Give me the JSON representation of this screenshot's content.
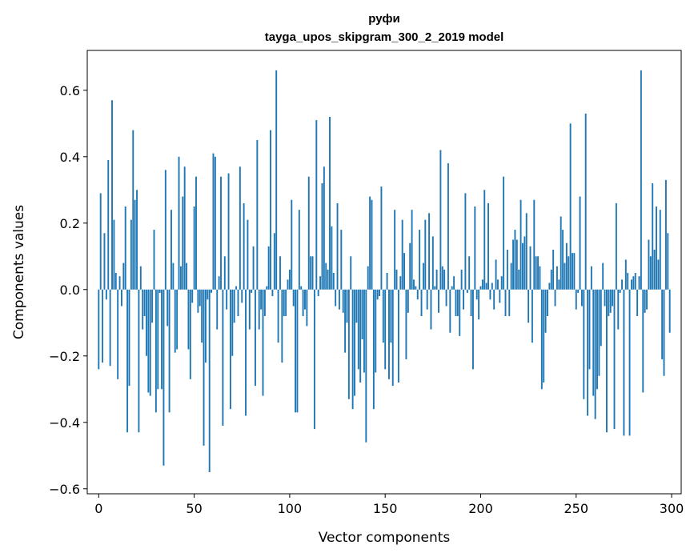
{
  "chart_data": {
    "type": "bar",
    "title": "руфи",
    "subtitle": "tayga_upos_skipgram_300_2_2019 model",
    "xlabel": "Vector components",
    "ylabel": "Components values",
    "xlim": [
      -6,
      305
    ],
    "ylim": [
      -0.615,
      0.72
    ],
    "xticks": [
      0,
      50,
      100,
      150,
      200,
      250,
      300
    ],
    "xtick_labels": [
      "0",
      "50",
      "100",
      "150",
      "200",
      "250",
      "300"
    ],
    "yticks": [
      -0.6,
      -0.4,
      -0.2,
      0.0,
      0.2,
      0.4,
      0.6
    ],
    "ytick_labels": [
      "−0.6",
      "−0.4",
      "−0.2",
      "0.0",
      "0.2",
      "0.4",
      "0.6"
    ],
    "grid": false,
    "bar_color": "#1f77b4",
    "x": "indices 0..299",
    "values": [
      -0.24,
      0.29,
      -0.22,
      0.17,
      -0.03,
      0.39,
      -0.23,
      0.57,
      0.21,
      0.05,
      -0.27,
      0.04,
      -0.05,
      0.08,
      0.25,
      -0.43,
      -0.29,
      0.21,
      0.48,
      0.27,
      0.3,
      -0.43,
      0.07,
      -0.12,
      -0.08,
      -0.2,
      -0.31,
      -0.32,
      -0.1,
      0.18,
      -0.37,
      -0.3,
      -0.01,
      -0.3,
      -0.53,
      0.36,
      -0.11,
      -0.37,
      0.24,
      0.08,
      -0.19,
      -0.18,
      0.4,
      0.07,
      0.28,
      0.37,
      0.08,
      -0.18,
      -0.27,
      -0.04,
      0.25,
      0.34,
      -0.07,
      -0.05,
      -0.16,
      -0.47,
      -0.22,
      -0.03,
      -0.55,
      -0.01,
      0.41,
      0.4,
      -0.12,
      0.04,
      0.34,
      -0.41,
      0.1,
      -0.06,
      0.35,
      -0.36,
      -0.2,
      -0.1,
      0.01,
      -0.08,
      0.37,
      -0.04,
      0.26,
      -0.38,
      0.21,
      -0.12,
      -0.01,
      0.13,
      -0.29,
      0.45,
      -0.12,
      -0.06,
      -0.32,
      -0.08,
      0.01,
      0.13,
      0.48,
      -0.02,
      0.17,
      0.66,
      -0.16,
      0.1,
      -0.22,
      -0.08,
      -0.08,
      0.03,
      0.06,
      0.27,
      -0.05,
      -0.37,
      -0.37,
      0.24,
      0.01,
      -0.08,
      -0.06,
      -0.11,
      0.34,
      0.1,
      0.1,
      -0.42,
      0.51,
      -0.02,
      0.04,
      0.32,
      0.37,
      0.08,
      0.06,
      0.52,
      0.19,
      0.05,
      -0.05,
      0.26,
      -0.06,
      0.18,
      -0.07,
      -0.19,
      -0.1,
      -0.33,
      0.1,
      -0.36,
      -0.32,
      -0.1,
      -0.24,
      -0.28,
      -0.15,
      -0.25,
      -0.46,
      0.07,
      0.28,
      0.27,
      -0.36,
      -0.25,
      -0.03,
      -0.02,
      0.31,
      -0.16,
      -0.24,
      0.05,
      -0.27,
      -0.16,
      -0.29,
      0.24,
      0.06,
      -0.28,
      0.04,
      0.21,
      0.11,
      -0.21,
      -0.07,
      0.14,
      0.24,
      0.03,
      0.01,
      -0.03,
      0.18,
      -0.08,
      0.08,
      0.21,
      -0.06,
      0.23,
      -0.12,
      0.16,
      0.01,
      0.06,
      -0.07,
      0.42,
      0.07,
      0.06,
      -0.05,
      0.38,
      -0.13,
      0.01,
      0.04,
      -0.08,
      -0.08,
      -0.14,
      0.06,
      -0.06,
      0.29,
      -0.01,
      0.1,
      -0.08,
      -0.24,
      0.25,
      -0.03,
      -0.09,
      0.01,
      0.03,
      0.3,
      0.02,
      0.26,
      -0.03,
      0.02,
      -0.06,
      0.09,
      0.03,
      -0.04,
      0.04,
      0.34,
      -0.08,
      0.12,
      -0.08,
      0.08,
      0.15,
      0.18,
      0.15,
      0.06,
      0.27,
      0.14,
      0.16,
      0.23,
      -0.1,
      0.13,
      -0.16,
      0.27,
      0.1,
      0.1,
      0.07,
      -0.3,
      -0.28,
      -0.13,
      -0.08,
      0.02,
      0.06,
      0.12,
      -0.05,
      0.07,
      0.03,
      0.22,
      0.18,
      0.08,
      0.14,
      0.1,
      0.5,
      0.11,
      0.11,
      -0.06,
      -0.01,
      0.28,
      -0.05,
      -0.33,
      0.53,
      -0.38,
      -0.24,
      0.07,
      -0.32,
      -0.39,
      -0.3,
      -0.26,
      -0.17,
      0.08,
      -0.05,
      -0.43,
      -0.08,
      -0.07,
      -0.05,
      -0.42,
      0.26,
      -0.12,
      -0.01,
      0.03,
      -0.44,
      0.09,
      0.05,
      -0.44,
      0.03,
      0.04,
      0.05,
      -0.08,
      0.04,
      0.66,
      -0.31,
      -0.07,
      -0.06,
      0.15,
      0.1,
      0.32,
      0.12,
      0.25,
      0.09,
      0.24,
      -0.21,
      -0.26,
      0.33,
      0.17,
      -0.13
    ]
  }
}
